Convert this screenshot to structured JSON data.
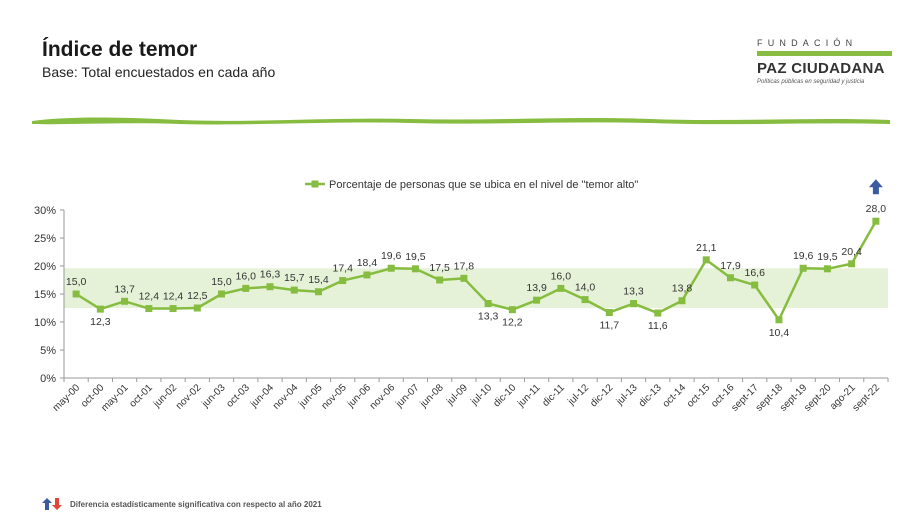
{
  "header": {
    "title": "Índice de temor",
    "subtitle": "Base: Total encuestados en cada año"
  },
  "logo": {
    "top": "FUNDACIÓN",
    "main": "PAZ CIUDADANA",
    "tagline": "Políticas públicas en seguridad y justicia"
  },
  "footnote": {
    "text": "Diferencia estadísticamente significativa con respecto al año 2021",
    "up_color": "#3a5ba0",
    "down_color": "#e0463a"
  },
  "colors": {
    "accent": "#86bc3f",
    "band": "#e6f2d8",
    "arrow": "#3a5ba0"
  },
  "chart_data": {
    "type": "line",
    "categories": [
      "may-00",
      "oct-00",
      "may-01",
      "oct-01",
      "jun-02",
      "nov-02",
      "jun-03",
      "oct-03",
      "jun-04",
      "nov-04",
      "jun-05",
      "nov-05",
      "jun-06",
      "nov-06",
      "jun-07",
      "jun-08",
      "jul-09",
      "jul-10",
      "dic-10",
      "jun-11",
      "dic-11",
      "jul-12",
      "dic-12",
      "jul-13",
      "dic-13",
      "oct-14",
      "oct-15",
      "oct-16",
      "sept-17",
      "sept-18",
      "sept-19",
      "sept-20",
      "ago-21",
      "sept-22"
    ],
    "series": [
      {
        "name": "Porcentaje de personas que se ubica en el nivel de \"temor alto\"",
        "values": [
          15.0,
          12.3,
          13.7,
          12.4,
          12.4,
          12.5,
          15.0,
          16.0,
          16.3,
          15.7,
          15.4,
          17.4,
          18.4,
          19.6,
          19.5,
          17.5,
          17.8,
          13.3,
          12.2,
          13.9,
          16.0,
          14.0,
          11.7,
          13.3,
          11.6,
          13.8,
          21.1,
          17.9,
          16.6,
          10.4,
          19.6,
          19.5,
          20.4,
          28.0
        ],
        "labels": [
          "15,0",
          "12,3",
          "13,7",
          "12,4",
          "12,4",
          "12,5",
          "15,0",
          "16,0",
          "16,3",
          "15,7",
          "15,4",
          "17,4",
          "18,4",
          "19,6",
          "19,5",
          "17,5",
          "17,8",
          "13,3",
          "12,2",
          "13,9",
          "16,0",
          "14,0",
          "11,7",
          "13,3",
          "11,6",
          "13,8",
          "21,1",
          "17,9",
          "16,6",
          "10,4",
          "19,6",
          "19,5",
          "20,4",
          "28,0"
        ]
      }
    ],
    "y_ticks": [
      "0%",
      "5%",
      "10%",
      "15%",
      "20%",
      "25%",
      "30%"
    ],
    "ylim": [
      0,
      30
    ],
    "band": [
      12.5,
      19.6
    ],
    "significant_up": [
      "sept-22"
    ],
    "legend_position": "top-center",
    "grid": false
  }
}
